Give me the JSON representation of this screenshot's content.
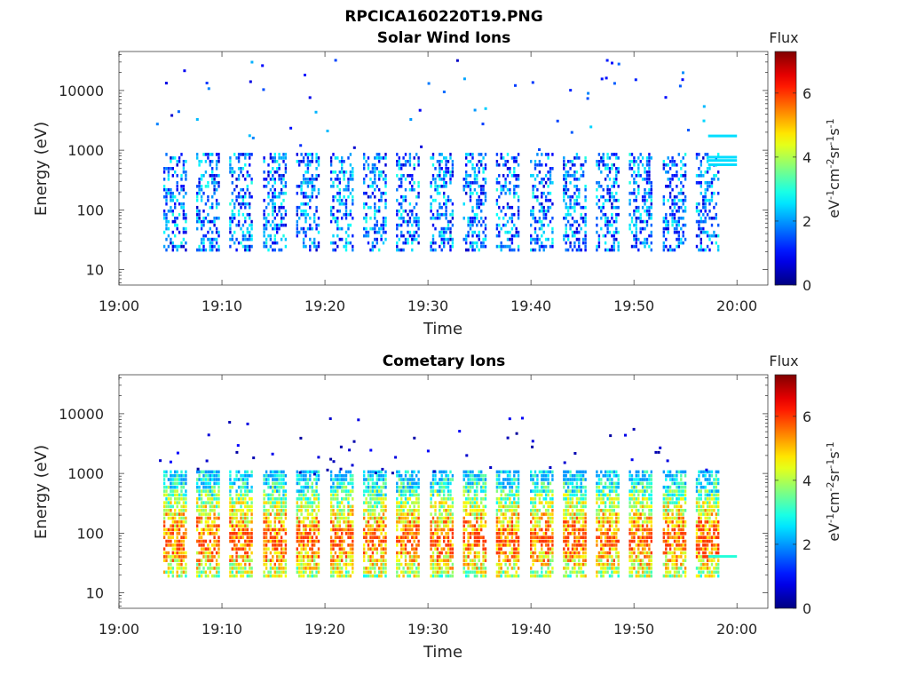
{
  "figure_title": "RPCICA160220T19.PNG",
  "chart_data": [
    {
      "type": "heatmap",
      "title": "Solar Wind Ions",
      "xlabel": "Time",
      "ylabel": "Energy (eV)",
      "x_tick_labels": [
        "19:00",
        "19:10",
        "19:20",
        "19:30",
        "19:40",
        "19:50",
        "20:00"
      ],
      "x_ticks_minutes": [
        0,
        10,
        20,
        30,
        40,
        50,
        60
      ],
      "xlim_minutes": [
        0,
        63
      ],
      "yscale": "log",
      "ylim": [
        5.5,
        45000
      ],
      "y_ticks": [
        10,
        100,
        1000,
        10000
      ],
      "y_tick_labels": [
        "10",
        "100",
        "1000",
        "10000"
      ],
      "colorbar": {
        "title": "Flux",
        "label_parts": [
          "eV",
          "-1",
          "cm",
          "-2",
          "sr",
          "-1",
          "s",
          "-1"
        ],
        "range": [
          0,
          7.3
        ],
        "ticks": [
          0,
          2,
          4,
          6
        ],
        "tick_labels": [
          "0",
          "2",
          "4",
          "6"
        ],
        "colormap": "jet"
      },
      "sweep_start_minutes": [
        4.3,
        7.5,
        10.7,
        14.0,
        17.2,
        20.5,
        23.7,
        26.9,
        30.2,
        33.4,
        36.6,
        39.9,
        43.1,
        46.3,
        49.5,
        52.8,
        56.0
      ],
      "energy_range_eV": [
        20,
        800
      ],
      "peak_flux": 3.0,
      "min_flux": 0.5,
      "sparse_high_energy_range_eV": [
        1000,
        35000
      ],
      "sparse_flux": [
        0.5,
        2.5
      ],
      "tail_band": {
        "x_range_minutes": [
          57.2,
          60.0
        ],
        "energies_eV": [
          1700,
          750,
          660,
          560
        ],
        "flux": 2.5
      }
    },
    {
      "type": "heatmap",
      "title": "Cometary Ions",
      "xlabel": "Time",
      "ylabel": "Energy (eV)",
      "x_tick_labels": [
        "19:00",
        "19:10",
        "19:20",
        "19:30",
        "19:40",
        "19:50",
        "20:00"
      ],
      "x_ticks_minutes": [
        0,
        10,
        20,
        30,
        40,
        50,
        60
      ],
      "xlim_minutes": [
        0,
        63
      ],
      "yscale": "log",
      "ylim": [
        5.5,
        45000
      ],
      "y_ticks": [
        10,
        100,
        1000,
        10000
      ],
      "y_tick_labels": [
        "10",
        "100",
        "1000",
        "10000"
      ],
      "colorbar": {
        "title": "Flux",
        "label_parts": [
          "eV",
          "-1",
          "cm",
          "-2",
          "sr",
          "-1",
          "s",
          "-1"
        ],
        "range": [
          0,
          7.3
        ],
        "ticks": [
          0,
          2,
          4,
          6
        ],
        "tick_labels": [
          "0",
          "2",
          "4",
          "6"
        ],
        "colormap": "jet"
      },
      "sweep_start_minutes": [
        4.3,
        7.5,
        10.7,
        14.0,
        17.2,
        20.5,
        23.7,
        26.9,
        30.2,
        33.4,
        36.6,
        39.9,
        43.1,
        46.3,
        49.5,
        52.8,
        56.0
      ],
      "energy_range_eV": [
        18,
        1000
      ],
      "peak_flux": 6.0,
      "min_flux": 2.0,
      "sparse_high_energy_range_eV": [
        1000,
        10000
      ],
      "sparse_flux": [
        0.2,
        1.0
      ],
      "tail_band": {
        "x_range_minutes": [
          57.2,
          60.0
        ],
        "energies_eV": [
          40
        ],
        "flux": 3.0
      }
    }
  ]
}
